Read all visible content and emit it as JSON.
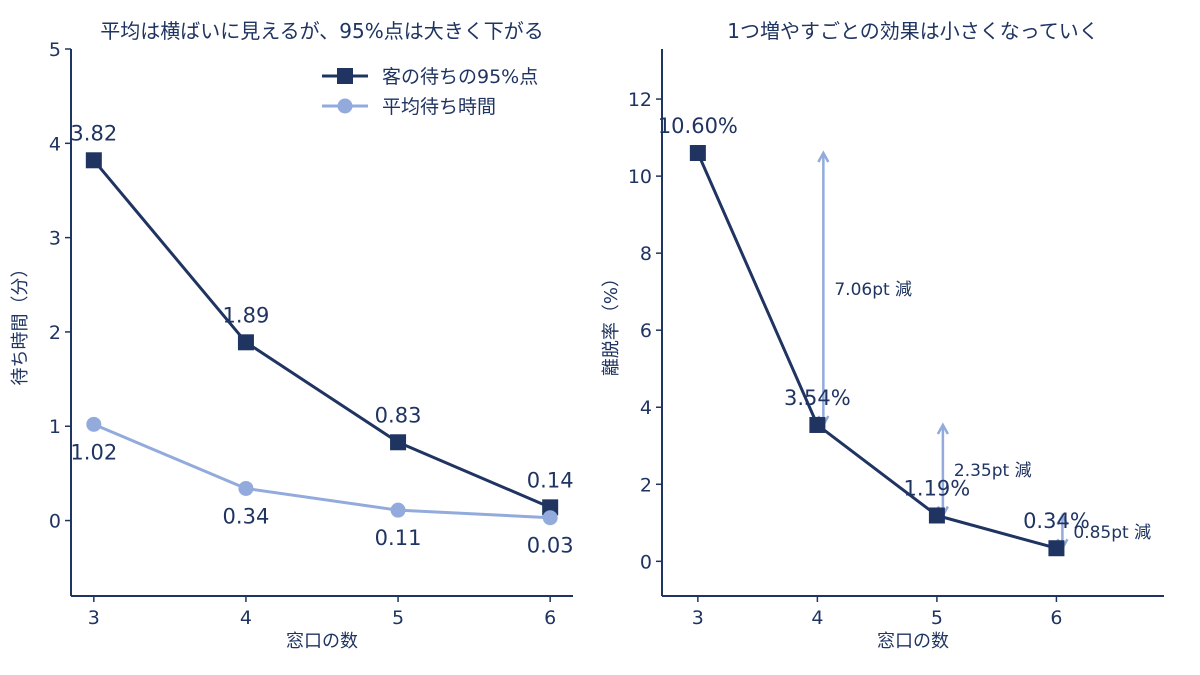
{
  "colors": {
    "dark": "#1f3461",
    "light": "#92abdc",
    "text": "#1f3461"
  },
  "chart_data": [
    {
      "type": "line",
      "title": "平均は横ばいに見えるが、95%点は大きく下がる",
      "xlabel": "窓口の数",
      "ylabel": "待ち時間（分）",
      "x": [
        3,
        4,
        5,
        6
      ],
      "x_ticks": [
        "3",
        "4",
        "5",
        "6"
      ],
      "xlim": [
        2.85,
        6.15
      ],
      "ylim": [
        -0.8,
        5
      ],
      "y_ticks": [
        "0",
        "1",
        "2",
        "3",
        "4",
        "5"
      ],
      "legend_position": "top-right",
      "series": [
        {
          "name": "客の待ちの95%点",
          "marker": "square",
          "color": "#1f3461",
          "values": [
            3.82,
            1.89,
            0.83,
            0.14
          ],
          "labels": [
            "3.82",
            "1.89",
            "0.83",
            "0.14"
          ],
          "label_position": "above"
        },
        {
          "name": "平均待ち時間",
          "marker": "circle",
          "color": "#92abdc",
          "values": [
            1.02,
            0.34,
            0.11,
            0.03
          ],
          "labels": [
            "1.02",
            "0.34",
            "0.11",
            "0.03"
          ],
          "label_position": "below"
        }
      ]
    },
    {
      "type": "line",
      "title": "1つ増やすごとの効果は小さくなっていく",
      "xlabel": "窓口の数",
      "ylabel": "離脱率（%）",
      "x": [
        3,
        4,
        5,
        6
      ],
      "x_ticks": [
        "3",
        "4",
        "5",
        "6"
      ],
      "xlim": [
        2.7,
        6.9
      ],
      "ylim": [
        -0.9,
        13.3
      ],
      "y_ticks": [
        "0",
        "2",
        "4",
        "6",
        "8",
        "10",
        "12"
      ],
      "series": [
        {
          "marker": "square",
          "color": "#1f3461",
          "values": [
            10.6,
            3.54,
            1.19,
            0.34
          ],
          "labels": [
            "10.60%",
            "3.54%",
            "1.19%",
            "0.34%"
          ]
        }
      ],
      "annotations": [
        {
          "x": 4.05,
          "from": 3.54,
          "to": 10.6,
          "text": "7.06pt 減"
        },
        {
          "x": 5.05,
          "from": 1.19,
          "to": 3.54,
          "text": "2.35pt 減"
        },
        {
          "x": 6.05,
          "from": 0.34,
          "to": 1.19,
          "text": "0.85pt 減"
        }
      ]
    }
  ]
}
